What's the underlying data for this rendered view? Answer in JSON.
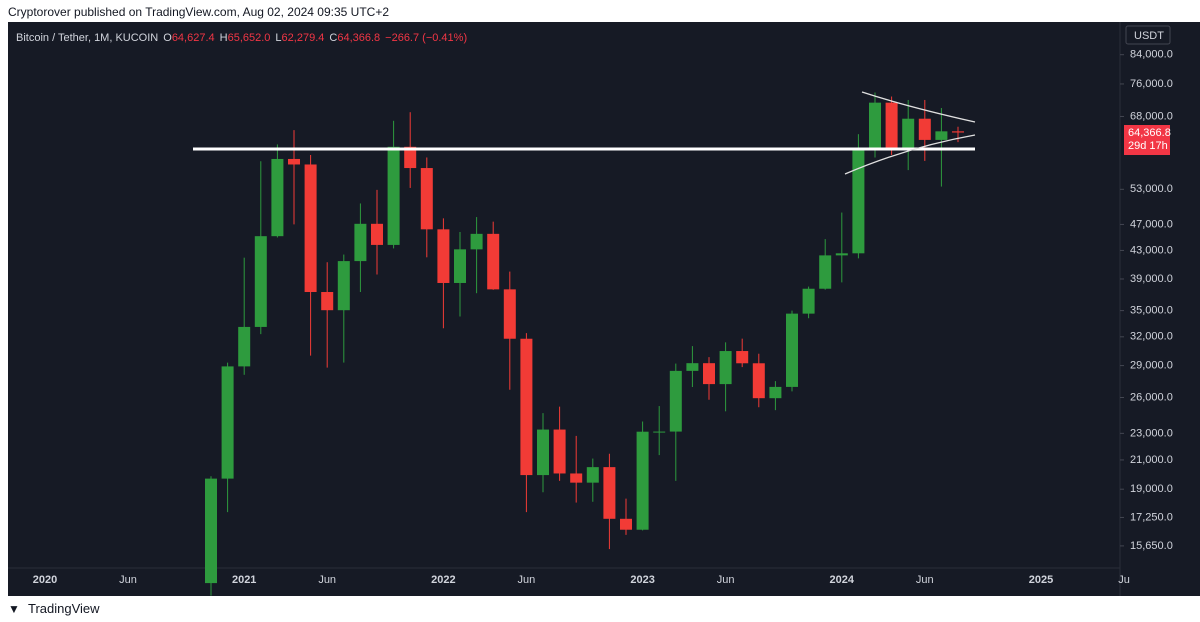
{
  "published": "Cryptorover published on TradingView.com, Aug 02, 2024 09:35 UTC+2",
  "footer": "TradingView",
  "chart_data": {
    "type": "candlestick",
    "symbol": "Bitcoin / Tether, 1M, KUCOIN",
    "ohlc_legend": {
      "open_key": "O",
      "open": "64,627.4",
      "high_key": "H",
      "high": "65,652.0",
      "low_key": "L",
      "low": "62,279.4",
      "close_key": "C",
      "close": "64,366.8",
      "change": "−266.7 (−0.41%)"
    },
    "currency": "USDT",
    "last_price_label": "64,366.8",
    "countdown": "29d 17h",
    "up_color": "#2e9b3e",
    "down_color": "#f23b36",
    "y_scale": "log",
    "ylim": [
      14560,
      93300
    ],
    "yticks": [
      {
        "value": 84000,
        "label": "84,000.0"
      },
      {
        "value": 76000,
        "label": "76,000.0"
      },
      {
        "value": 68000,
        "label": "68,000.0"
      },
      {
        "value": 53000,
        "label": "53,000.0"
      },
      {
        "value": 47000,
        "label": "47,000.0"
      },
      {
        "value": 43000,
        "label": "43,000.0"
      },
      {
        "value": 39000,
        "label": "39,000.0"
      },
      {
        "value": 35000,
        "label": "35,000.0"
      },
      {
        "value": 32000,
        "label": "32,000.0"
      },
      {
        "value": 29000,
        "label": "29,000.0"
      },
      {
        "value": 26000,
        "label": "26,000.0"
      },
      {
        "value": 23000,
        "label": "23,000.0"
      },
      {
        "value": 21000,
        "label": "21,000.0"
      },
      {
        "value": 19000,
        "label": "19,000.0"
      },
      {
        "value": 17250,
        "label": "17,250.0"
      },
      {
        "value": 15650,
        "label": "15,650.0"
      }
    ],
    "categories": [
      "2020",
      null,
      null,
      null,
      null,
      "Jun",
      null,
      null,
      null,
      null,
      null,
      null,
      "2021",
      null,
      null,
      null,
      null,
      "Jun",
      null,
      null,
      null,
      null,
      null,
      null,
      "2022",
      null,
      null,
      null,
      null,
      "Jun",
      null,
      null,
      null,
      null,
      null,
      null,
      "2023",
      null,
      null,
      null,
      null,
      "Jun",
      null,
      null,
      null,
      null,
      null,
      null,
      "2024",
      null,
      null,
      null,
      null,
      "Jun",
      null,
      null,
      null,
      null,
      null,
      null,
      "2025",
      null,
      null,
      null,
      null,
      "Ju",
      null
    ],
    "open": [
      null,
      null,
      null,
      null,
      null,
      null,
      null,
      null,
      null,
      null,
      13780,
      19700,
      28920,
      33100,
      45150,
      58800,
      57700,
      37300,
      35050,
      41460,
      47100,
      43820,
      61300,
      57000,
      46220,
      38470,
      43160,
      45510,
      37640,
      31790,
      19940,
      23300,
      20050,
      19430,
      20490,
      17170,
      16540,
      23130,
      23140,
      28480,
      29240,
      27220,
      30480,
      29230,
      25940,
      26960,
      34640,
      37720,
      42280,
      42580,
      61130,
      71290,
      60640,
      67480,
      62760,
      64627.4,
      null,
      null,
      null,
      null,
      null,
      null,
      null,
      null,
      null,
      null,
      null
    ],
    "high": [
      null,
      null,
      null,
      null,
      null,
      null,
      null,
      null,
      null,
      null,
      19860,
      29300,
      41950,
      58350,
      61800,
      64900,
      59600,
      41300,
      42400,
      50500,
      52900,
      67000,
      69000,
      59100,
      47990,
      45800,
      48200,
      47450,
      40000,
      32400,
      24650,
      25200,
      22800,
      21100,
      21450,
      18400,
      23950,
      25250,
      29200,
      31000,
      29850,
      31400,
      31800,
      30200,
      27500,
      35000,
      38000,
      44700,
      48950,
      64000,
      73800,
      72800,
      71950,
      71950,
      70000,
      65652.0,
      null,
      null,
      null,
      null,
      null,
      null,
      null,
      null,
      null,
      null,
      null
    ],
    "low": [
      null,
      null,
      null,
      null,
      null,
      null,
      null,
      null,
      null,
      null,
      13200,
      17570,
      28100,
      32300,
      44950,
      47000,
      30000,
      28800,
      29300,
      37300,
      39600,
      43300,
      53250,
      42000,
      32950,
      34300,
      37150,
      37580,
      26700,
      17570,
      18800,
      19550,
      18150,
      18200,
      15480,
      16250,
      16500,
      21350,
      19550,
      26950,
      25800,
      24800,
      28850,
      25150,
      24900,
      26550,
      34100,
      37600,
      38550,
      41850,
      59100,
      59600,
      56600,
      58400,
      53500,
      62279.4,
      null,
      null,
      null,
      null,
      null,
      null,
      null,
      null,
      null,
      null,
      null
    ],
    "close": [
      null,
      null,
      null,
      null,
      null,
      null,
      null,
      null,
      null,
      null,
      19700,
      28920,
      33100,
      45150,
      58800,
      57700,
      37300,
      35050,
      41460,
      47100,
      43820,
      61300,
      57000,
      46220,
      38470,
      43160,
      45510,
      37640,
      31790,
      19940,
      23300,
      20050,
      19430,
      20490,
      17170,
      16540,
      23130,
      23140,
      28480,
      29240,
      27220,
      30480,
      29230,
      25940,
      26960,
      34640,
      37720,
      42280,
      42580,
      61130,
      71290,
      60640,
      67480,
      62760,
      64627.4,
      64366.8,
      null,
      null,
      null,
      null,
      null,
      null,
      null,
      null,
      null,
      null,
      null
    ]
  }
}
